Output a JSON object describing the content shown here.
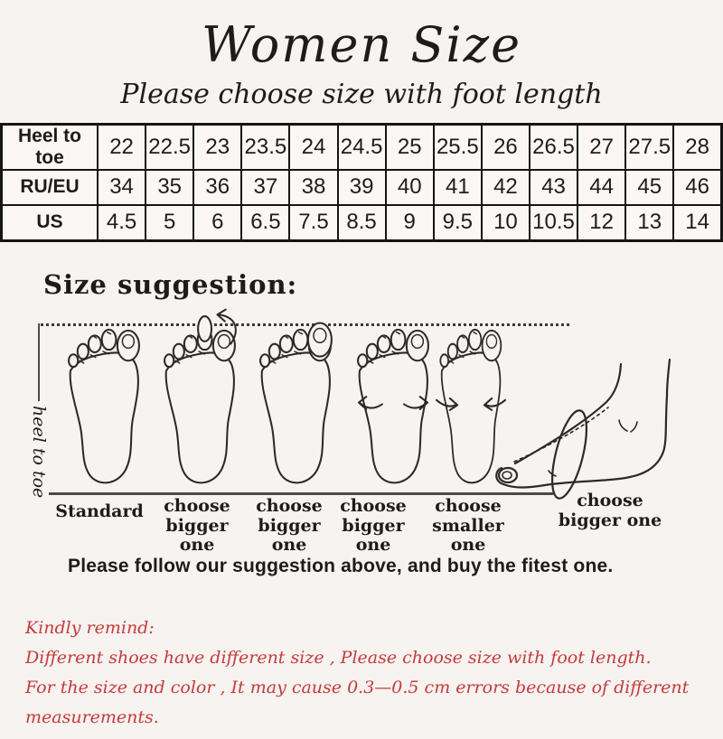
{
  "title": "Women Size",
  "subtitle": "Please choose size with foot length",
  "size_table": {
    "rows": [
      {
        "header": "Heel to toe",
        "values": [
          "22",
          "22.5",
          "23",
          "23.5",
          "24",
          "24.5",
          "25",
          "25.5",
          "26",
          "26.5",
          "27",
          "27.5",
          "28"
        ]
      },
      {
        "header": "RU/EU",
        "values": [
          "34",
          "35",
          "36",
          "37",
          "38",
          "39",
          "40",
          "41",
          "42",
          "43",
          "44",
          "45",
          "46"
        ]
      },
      {
        "header": "US",
        "values": [
          "4.5",
          "5",
          "6",
          "6.5",
          "7.5",
          "8.5",
          "9",
          "9.5",
          "10",
          "10.5",
          "12",
          "13",
          "14"
        ]
      }
    ]
  },
  "suggestion": {
    "heading": "Size suggestion:",
    "axis_label": "heel to toe",
    "foot_labels": [
      "Standard",
      "choose bigger one",
      "choose bigger one",
      "choose bigger one",
      "choose smaller one",
      "choose bigger one"
    ],
    "note": "Please follow our suggestion above, and buy the fitest one."
  },
  "remind": {
    "heading": "Kindly remind:",
    "lines": [
      "Different shoes have different size , Please choose size with foot length.",
      "For the size and color , It may cause 0.3—0.5 cm errors because of different measurements."
    ]
  },
  "colors": {
    "background": "#f7f3f1",
    "ink": "#1c1c1c",
    "remind_red": "#c43b3c"
  }
}
